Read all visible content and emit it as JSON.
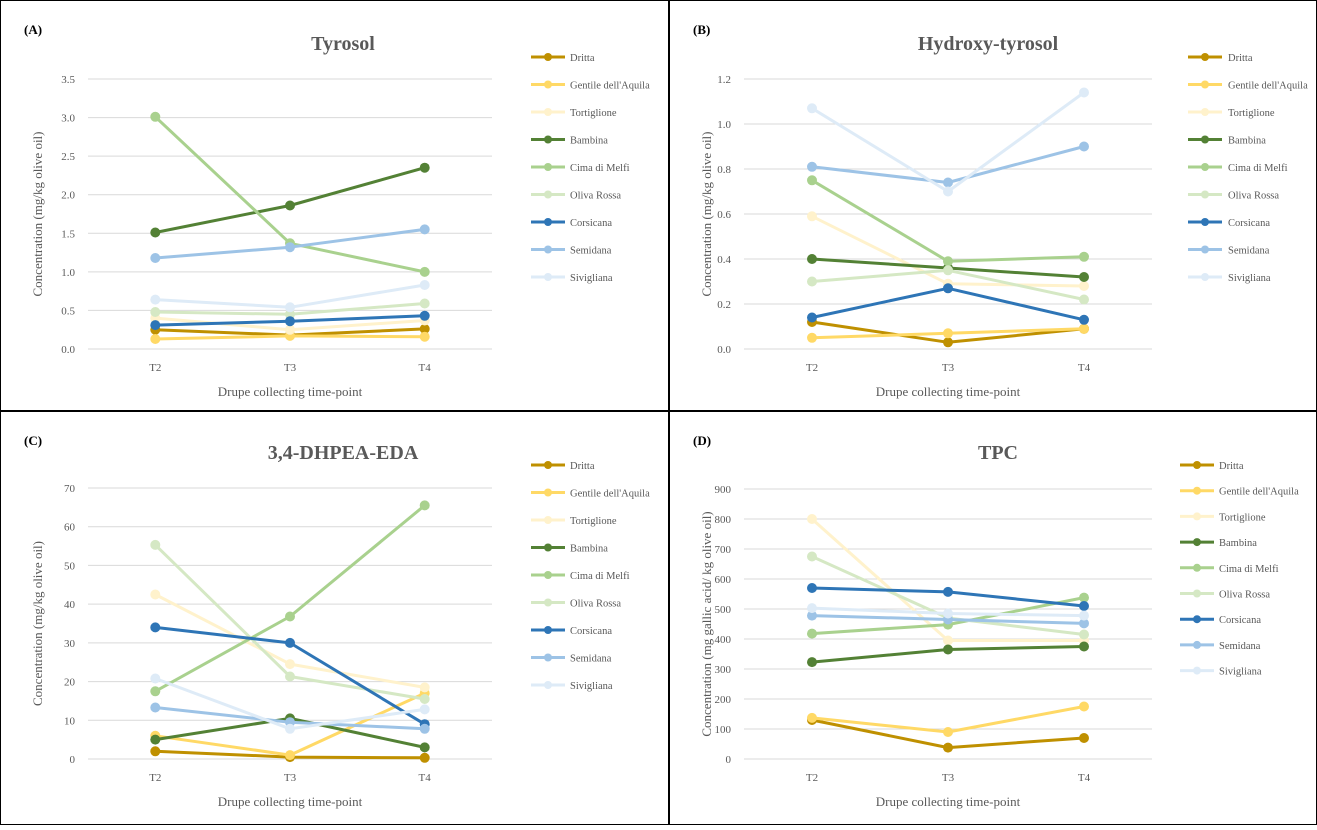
{
  "colors": {
    "Dritta": "#bf9000",
    "Gentile dell'Aquila": "#ffd966",
    "Tortiglione": "#fff2cc",
    "Bambina": "#538135",
    "Cima di Melfi": "#a9d18e",
    "Oliva Rossa": "#d5e8c4",
    "Corsicana": "#2e75b6",
    "Semidana": "#9dc3e6",
    "Sivigliana": "#deebf7"
  },
  "chart_data": [
    {
      "type": "line",
      "panel_label": "(A)",
      "title": "Tyrosol",
      "xlabel": "Drupe collecting time-point",
      "ylabel": "Concentration (mg/kg olive oil)",
      "categories": [
        "T2",
        "T3",
        "T4"
      ],
      "ylim": [
        0,
        3.5
      ],
      "yticks": [
        "0.0",
        "0.5",
        "1.0",
        "1.5",
        "2.0",
        "2.5",
        "3.0",
        "3.5"
      ],
      "legend_position": "right",
      "series": [
        {
          "name": "Dritta",
          "values": [
            0.25,
            0.18,
            0.26
          ]
        },
        {
          "name": "Gentile dell'Aquila",
          "values": [
            0.13,
            0.17,
            0.16
          ]
        },
        {
          "name": "Tortiglione",
          "values": [
            0.4,
            0.25,
            0.37
          ]
        },
        {
          "name": "Bambina",
          "values": [
            1.51,
            1.86,
            2.35
          ]
        },
        {
          "name": "Cima di Melfi",
          "values": [
            3.01,
            1.37,
            1.0
          ]
        },
        {
          "name": "Oliva Rossa",
          "values": [
            0.48,
            0.45,
            0.59
          ]
        },
        {
          "name": "Corsicana",
          "values": [
            0.31,
            0.36,
            0.43
          ]
        },
        {
          "name": "Semidana",
          "values": [
            1.18,
            1.32,
            1.55
          ]
        },
        {
          "name": "Sivigliana",
          "values": [
            0.64,
            0.54,
            0.83
          ]
        }
      ]
    },
    {
      "type": "line",
      "panel_label": "(B)",
      "title": "Hydroxy-tyrosol",
      "xlabel": "Drupe collecting time-point",
      "ylabel": "Concentration (mg/kg olive oil)",
      "categories": [
        "T2",
        "T3",
        "T4"
      ],
      "ylim": [
        0,
        1.2
      ],
      "yticks": [
        "0.0",
        "0.2",
        "0.4",
        "0.6",
        "0.8",
        "1.0",
        "1.2"
      ],
      "legend_position": "right",
      "series": [
        {
          "name": "Dritta",
          "values": [
            0.12,
            0.03,
            0.09
          ]
        },
        {
          "name": "Gentile dell'Aquila",
          "values": [
            0.05,
            0.07,
            0.09
          ]
        },
        {
          "name": "Tortiglione",
          "values": [
            0.59,
            0.29,
            0.28
          ]
        },
        {
          "name": "Bambina",
          "values": [
            0.4,
            0.36,
            0.32
          ]
        },
        {
          "name": "Cima di Melfi",
          "values": [
            0.75,
            0.39,
            0.41
          ]
        },
        {
          "name": "Oliva Rossa",
          "values": [
            0.3,
            0.35,
            0.22
          ]
        },
        {
          "name": "Corsicana",
          "values": [
            0.14,
            0.27,
            0.13
          ]
        },
        {
          "name": "Semidana",
          "values": [
            0.81,
            0.74,
            0.9
          ]
        },
        {
          "name": "Sivigliana",
          "values": [
            1.07,
            0.7,
            1.14
          ]
        }
      ]
    },
    {
      "type": "line",
      "panel_label": "(C)",
      "title": "3,4-DHPEA-EDA",
      "xlabel": "Drupe collecting time-point",
      "ylabel": "Concentration (mg/kg olive oil)",
      "categories": [
        "T2",
        "T3",
        "T4"
      ],
      "ylim": [
        0,
        70
      ],
      "yticks": [
        "0",
        "10",
        "20",
        "30",
        "40",
        "50",
        "60",
        "70"
      ],
      "legend_position": "right",
      "series": [
        {
          "name": "Dritta",
          "values": [
            2,
            0.5,
            0.3
          ]
        },
        {
          "name": "Gentile dell'Aquila",
          "values": [
            6,
            1,
            17
          ]
        },
        {
          "name": "Tortiglione",
          "values": [
            42.5,
            24.5,
            18.5
          ]
        },
        {
          "name": "Bambina",
          "values": [
            5,
            10.5,
            3
          ]
        },
        {
          "name": "Cima di Melfi",
          "values": [
            17.5,
            36.8,
            65.5
          ]
        },
        {
          "name": "Oliva Rossa",
          "values": [
            55.3,
            21.3,
            15.5
          ]
        },
        {
          "name": "Corsicana",
          "values": [
            34,
            30,
            9
          ]
        },
        {
          "name": "Semidana",
          "values": [
            13.3,
            9.5,
            7.8
          ]
        },
        {
          "name": "Sivigliana",
          "values": [
            20.8,
            7.8,
            12.8
          ]
        }
      ]
    },
    {
      "type": "line",
      "panel_label": "(D)",
      "title": "TPC",
      "xlabel": "Drupe collecting time-point",
      "ylabel": "Concentration (mg gallic acid/ kg olive oil)",
      "categories": [
        "T2",
        "T3",
        "T4"
      ],
      "ylim": [
        0,
        900
      ],
      "yticks": [
        "0",
        "100",
        "200",
        "300",
        "400",
        "500",
        "600",
        "700",
        "800",
        "900"
      ],
      "legend_position": "right",
      "series": [
        {
          "name": "Dritta",
          "values": [
            130,
            38,
            70
          ]
        },
        {
          "name": "Gentile dell'Aquila",
          "values": [
            137,
            90,
            175
          ]
        },
        {
          "name": "Tortiglione",
          "values": [
            800,
            395,
            395
          ]
        },
        {
          "name": "Bambina",
          "values": [
            323,
            365,
            375
          ]
        },
        {
          "name": "Cima di Melfi",
          "values": [
            418,
            448,
            538
          ]
        },
        {
          "name": "Oliva Rossa",
          "values": [
            675,
            470,
            415
          ]
        },
        {
          "name": "Corsicana",
          "values": [
            570,
            557,
            510
          ]
        },
        {
          "name": "Semidana",
          "values": [
            478,
            465,
            452
          ]
        },
        {
          "name": "Sivigliana",
          "values": [
            503,
            485,
            478
          ]
        }
      ]
    }
  ]
}
